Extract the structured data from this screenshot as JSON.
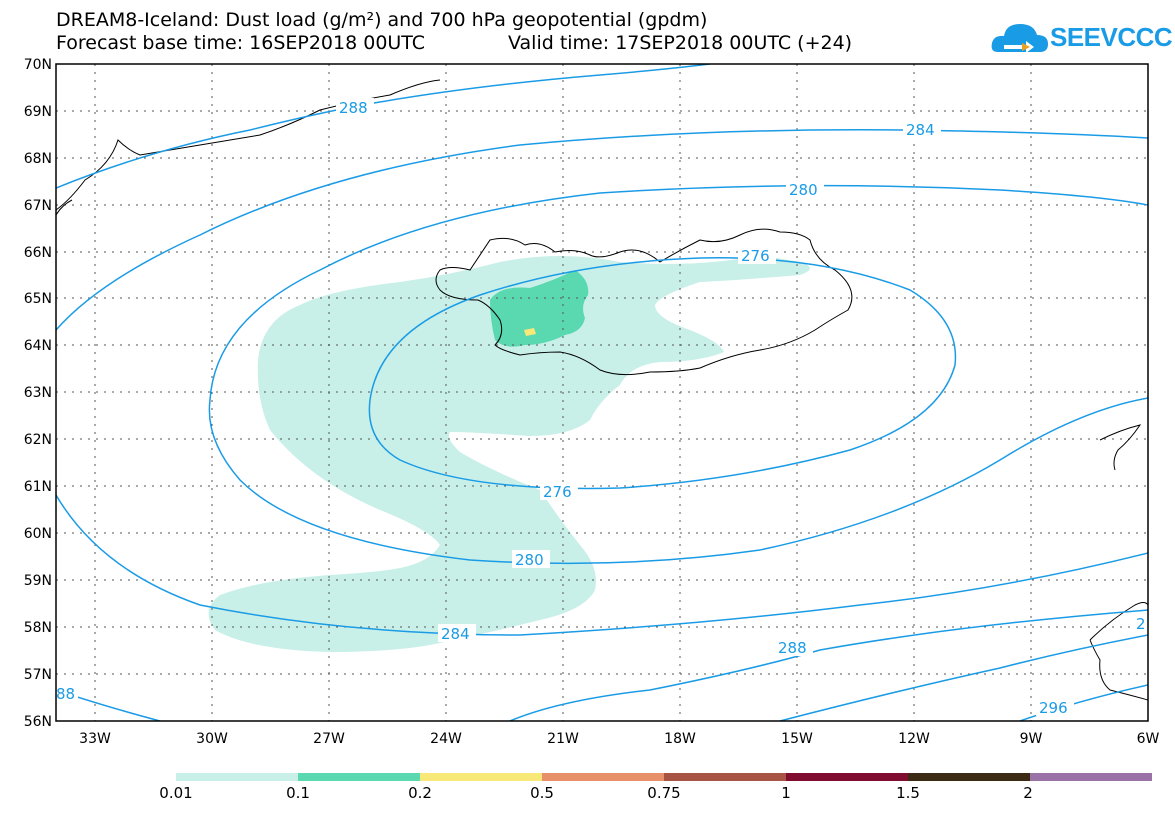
{
  "header": {
    "title": "DREAM8-Iceland: Dust load (g/m²) and 700 hPa geopotential (gpdm)",
    "forecast_base": "Forecast base time: 16SEP2018 00UTC",
    "valid_time": "Valid time: 17SEP2018 00UTC (+24)"
  },
  "logo": {
    "text": "SEEVCCC",
    "icon": "cloud-icon",
    "color": "#1a9be6"
  },
  "map": {
    "lon_range": [
      -34,
      -6
    ],
    "lat_range": [
      56,
      70
    ],
    "lat_labels": [
      "70N",
      "69N",
      "68N",
      "67N",
      "66N",
      "65N",
      "64N",
      "63N",
      "62N",
      "61N",
      "60N",
      "59N",
      "58N",
      "57N",
      "56N"
    ],
    "lon_labels": [
      "33W",
      "30W",
      "27W",
      "24W",
      "21W",
      "18W",
      "15W",
      "12W",
      "9W",
      "6W"
    ],
    "contour_color": "#1a9be6",
    "contour_labels": [
      "288",
      "284",
      "280",
      "276",
      "276",
      "280",
      "284",
      "288",
      "296",
      "88",
      "2"
    ]
  },
  "colorbar": {
    "labels": [
      "0.01",
      "0.1",
      "0.2",
      "0.5",
      "0.75",
      "1",
      "1.5",
      "2"
    ],
    "colors": [
      "#c8f0e8",
      "#5ad8b0",
      "#f8e878",
      "#e8906a",
      "#a85444",
      "#800c30",
      "#3c2a14",
      "#9a72a8"
    ]
  }
}
